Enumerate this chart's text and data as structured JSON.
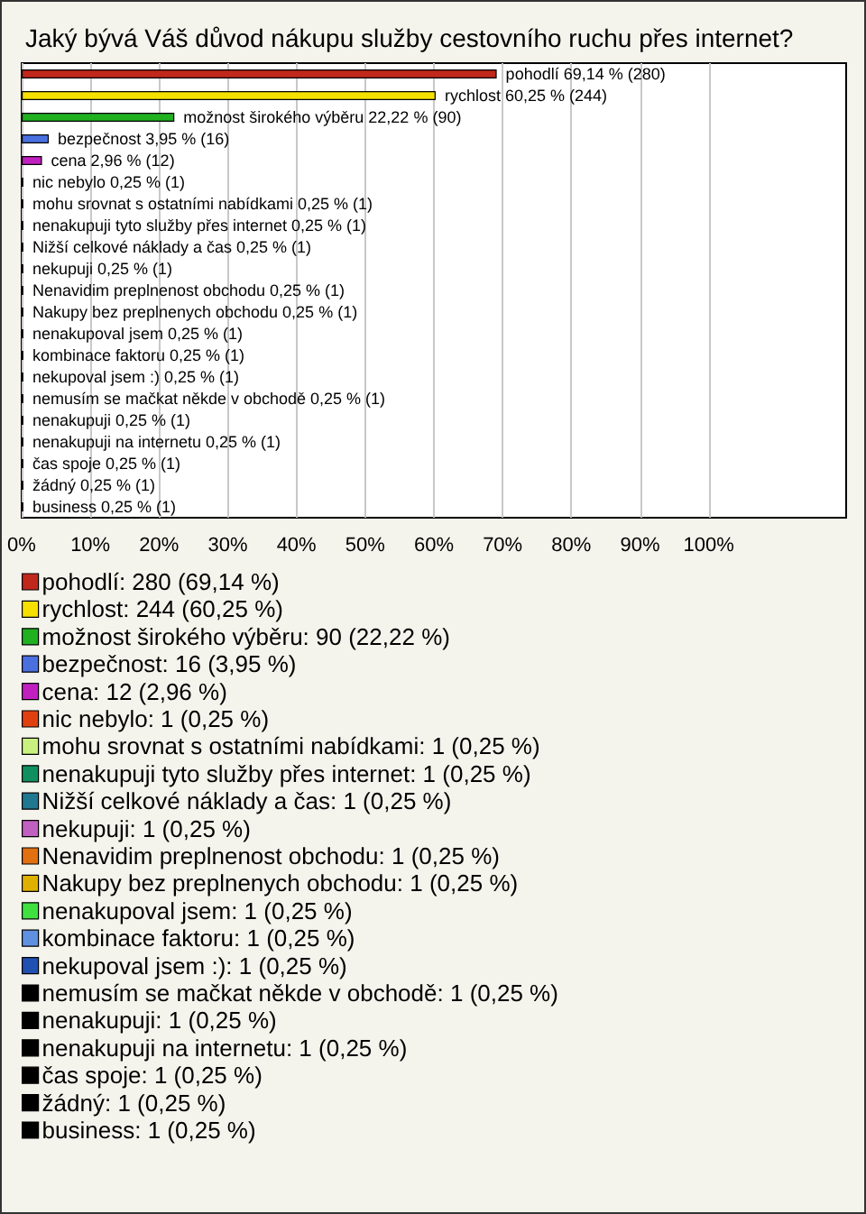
{
  "chart_data": {
    "type": "bar",
    "orientation": "horizontal",
    "stacked": true,
    "title": "Jaký bývá Váš důvod nákupu služby cestovního ruchu přes internet?",
    "categories": [
      null,
      null,
      null,
      null,
      null,
      null,
      null,
      null,
      null,
      null,
      null,
      null,
      null,
      null,
      null,
      null,
      null,
      null,
      null,
      null,
      null
    ],
    "xlim": [
      0,
      120
    ],
    "xticks": [
      {
        "value": 0,
        "label": "0%"
      },
      {
        "value": 10,
        "label": "10%"
      },
      {
        "value": 20,
        "label": "20%"
      },
      {
        "value": 30,
        "label": "30%"
      },
      {
        "value": 40,
        "label": "40%"
      },
      {
        "value": 50,
        "label": "50%"
      },
      {
        "value": 60,
        "label": "60%"
      },
      {
        "value": 70,
        "label": "70%"
      },
      {
        "value": 80,
        "label": "80%"
      },
      {
        "value": 90,
        "label": "90%"
      },
      {
        "value": 100,
        "label": "100%"
      }
    ],
    "grid": "x",
    "legend": "bottom",
    "series": [
      {
        "name": "pohodlí: 280 (69,14 %)",
        "color": "#c0281c",
        "values": [
          69.14,
          null,
          null,
          null,
          null,
          null,
          null,
          null,
          null,
          null,
          null,
          null,
          null,
          null,
          null,
          null,
          null,
          null,
          null,
          null,
          null
        ],
        "value_labels": [
          "pohodlí 69,14 % (280)",
          null,
          null,
          null,
          null,
          null,
          null,
          null,
          null,
          null,
          null,
          null,
          null,
          null,
          null,
          null,
          null,
          null,
          null,
          null,
          null
        ]
      },
      {
        "name": "rychlost: 244 (60,25 %)",
        "color": "#f5e000",
        "values": [
          null,
          60.25,
          null,
          null,
          null,
          null,
          null,
          null,
          null,
          null,
          null,
          null,
          null,
          null,
          null,
          null,
          null,
          null,
          null,
          null,
          null
        ],
        "value_labels": [
          null,
          "rychlost 60,25 % (244)",
          null,
          null,
          null,
          null,
          null,
          null,
          null,
          null,
          null,
          null,
          null,
          null,
          null,
          null,
          null,
          null,
          null,
          null,
          null
        ]
      },
      {
        "name": "možnost širokého výběru: 90 (22,22 %)",
        "color": "#20b020",
        "values": [
          null,
          null,
          22.22,
          null,
          null,
          null,
          null,
          null,
          null,
          null,
          null,
          null,
          null,
          null,
          null,
          null,
          null,
          null,
          null,
          null,
          null
        ],
        "value_labels": [
          null,
          null,
          "možnost širokého výběru 22,22 % (90)",
          null,
          null,
          null,
          null,
          null,
          null,
          null,
          null,
          null,
          null,
          null,
          null,
          null,
          null,
          null,
          null,
          null,
          null
        ]
      },
      {
        "name": "bezpečnost: 16 (3,95 %)",
        "color": "#4a70e0",
        "values": [
          null,
          null,
          null,
          3.95,
          null,
          null,
          null,
          null,
          null,
          null,
          null,
          null,
          null,
          null,
          null,
          null,
          null,
          null,
          null,
          null,
          null
        ],
        "value_labels": [
          null,
          null,
          null,
          "bezpečnost 3,95 % (16)",
          null,
          null,
          null,
          null,
          null,
          null,
          null,
          null,
          null,
          null,
          null,
          null,
          null,
          null,
          null,
          null,
          null
        ]
      },
      {
        "name": "cena: 12 (2,96 %)",
        "color": "#c020c0",
        "values": [
          null,
          null,
          null,
          null,
          2.96,
          null,
          null,
          null,
          null,
          null,
          null,
          null,
          null,
          null,
          null,
          null,
          null,
          null,
          null,
          null,
          null
        ],
        "value_labels": [
          null,
          null,
          null,
          null,
          "cena 2,96 % (12)",
          null,
          null,
          null,
          null,
          null,
          null,
          null,
          null,
          null,
          null,
          null,
          null,
          null,
          null,
          null,
          null
        ]
      },
      {
        "name": "nic nebylo: 1 (0,25 %)",
        "color": "#e04010",
        "values": [
          null,
          null,
          null,
          null,
          null,
          0.25,
          null,
          null,
          null,
          null,
          null,
          null,
          null,
          null,
          null,
          null,
          null,
          null,
          null,
          null,
          null
        ],
        "value_labels": [
          null,
          null,
          null,
          null,
          null,
          "nic nebylo 0,25 % (1)",
          null,
          null,
          null,
          null,
          null,
          null,
          null,
          null,
          null,
          null,
          null,
          null,
          null,
          null,
          null
        ]
      },
      {
        "name": "mohu srovnat s ostatními nabídkami: 1 (0,25 %)",
        "color": "#c8f080",
        "values": [
          null,
          null,
          null,
          null,
          null,
          null,
          0.25,
          null,
          null,
          null,
          null,
          null,
          null,
          null,
          null,
          null,
          null,
          null,
          null,
          null,
          null
        ],
        "value_labels": [
          null,
          null,
          null,
          null,
          null,
          null,
          "mohu srovnat s ostatními nabídkami 0,25 % (1)",
          null,
          null,
          null,
          null,
          null,
          null,
          null,
          null,
          null,
          null,
          null,
          null,
          null,
          null
        ]
      },
      {
        "name": "nenakupuji tyto služby přes internet: 1 (0,25 %)",
        "color": "#109060",
        "values": [
          null,
          null,
          null,
          null,
          null,
          null,
          null,
          0.25,
          null,
          null,
          null,
          null,
          null,
          null,
          null,
          null,
          null,
          null,
          null,
          null,
          null
        ],
        "value_labels": [
          null,
          null,
          null,
          null,
          null,
          null,
          null,
          "nenakupuji tyto služby přes internet 0,25 % (1)",
          null,
          null,
          null,
          null,
          null,
          null,
          null,
          null,
          null,
          null,
          null,
          null,
          null
        ]
      },
      {
        "name": "Nižší celkové náklady a čas: 1 (0,25 %)",
        "color": "#207890",
        "values": [
          null,
          null,
          null,
          null,
          null,
          null,
          null,
          null,
          0.25,
          null,
          null,
          null,
          null,
          null,
          null,
          null,
          null,
          null,
          null,
          null,
          null
        ],
        "value_labels": [
          null,
          null,
          null,
          null,
          null,
          null,
          null,
          null,
          "Nižší celkové náklady a čas 0,25 % (1)",
          null,
          null,
          null,
          null,
          null,
          null,
          null,
          null,
          null,
          null,
          null,
          null
        ]
      },
      {
        "name": "nekupuji: 1 (0,25 %)",
        "color": "#c060c0",
        "values": [
          null,
          null,
          null,
          null,
          null,
          null,
          null,
          null,
          null,
          0.25,
          null,
          null,
          null,
          null,
          null,
          null,
          null,
          null,
          null,
          null,
          null
        ],
        "value_labels": [
          null,
          null,
          null,
          null,
          null,
          null,
          null,
          null,
          null,
          "nekupuji 0,25 % (1)",
          null,
          null,
          null,
          null,
          null,
          null,
          null,
          null,
          null,
          null,
          null
        ]
      },
      {
        "name": "Nenavidim preplnenost obchodu: 1 (0,25 %)",
        "color": "#e07010",
        "values": [
          null,
          null,
          null,
          null,
          null,
          null,
          null,
          null,
          null,
          null,
          0.25,
          null,
          null,
          null,
          null,
          null,
          null,
          null,
          null,
          null,
          null
        ],
        "value_labels": [
          null,
          null,
          null,
          null,
          null,
          null,
          null,
          null,
          null,
          null,
          "Nenavidim preplnenost obchodu 0,25 % (1)",
          null,
          null,
          null,
          null,
          null,
          null,
          null,
          null,
          null,
          null
        ]
      },
      {
        "name": "Nakupy bez preplnenych obchodu: 1 (0,25 %)",
        "color": "#e0b000",
        "values": [
          null,
          null,
          null,
          null,
          null,
          null,
          null,
          null,
          null,
          null,
          null,
          0.25,
          null,
          null,
          null,
          null,
          null,
          null,
          null,
          null,
          null
        ],
        "value_labels": [
          null,
          null,
          null,
          null,
          null,
          null,
          null,
          null,
          null,
          null,
          null,
          "Nakupy bez preplnenych obchodu 0,25 % (1)",
          null,
          null,
          null,
          null,
          null,
          null,
          null,
          null,
          null
        ]
      },
      {
        "name": "nenakupoval jsem: 1 (0,25 %)",
        "color": "#40e040",
        "values": [
          null,
          null,
          null,
          null,
          null,
          null,
          null,
          null,
          null,
          null,
          null,
          null,
          0.25,
          null,
          null,
          null,
          null,
          null,
          null,
          null,
          null
        ],
        "value_labels": [
          null,
          null,
          null,
          null,
          null,
          null,
          null,
          null,
          null,
          null,
          null,
          null,
          "nenakupoval jsem 0,25 % (1)",
          null,
          null,
          null,
          null,
          null,
          null,
          null,
          null
        ]
      },
      {
        "name": "kombinace faktoru: 1 (0,25 %)",
        "color": "#6090e0",
        "values": [
          null,
          null,
          null,
          null,
          null,
          null,
          null,
          null,
          null,
          null,
          null,
          null,
          null,
          0.25,
          null,
          null,
          null,
          null,
          null,
          null,
          null
        ],
        "value_labels": [
          null,
          null,
          null,
          null,
          null,
          null,
          null,
          null,
          null,
          null,
          null,
          null,
          null,
          "kombinace faktoru 0,25 % (1)",
          null,
          null,
          null,
          null,
          null,
          null,
          null
        ]
      },
      {
        "name": "nekupoval jsem :): 1 (0,25 %)",
        "color": "#2050b0",
        "values": [
          null,
          null,
          null,
          null,
          null,
          null,
          null,
          null,
          null,
          null,
          null,
          null,
          null,
          null,
          0.25,
          null,
          null,
          null,
          null,
          null,
          null
        ],
        "value_labels": [
          null,
          null,
          null,
          null,
          null,
          null,
          null,
          null,
          null,
          null,
          null,
          null,
          null,
          null,
          "nekupoval jsem :) 0,25 % (1)",
          null,
          null,
          null,
          null,
          null,
          null
        ]
      },
      {
        "name": "nemusím se mačkat někde v obchodě: 1 (0,25 %)",
        "color": "#000000",
        "values": [
          null,
          null,
          null,
          null,
          null,
          null,
          null,
          null,
          null,
          null,
          null,
          null,
          null,
          null,
          null,
          0.25,
          null,
          null,
          null,
          null,
          null
        ],
        "value_labels": [
          null,
          null,
          null,
          null,
          null,
          null,
          null,
          null,
          null,
          null,
          null,
          null,
          null,
          null,
          null,
          "nemusím se mačkat někde v obchodě 0,25 % (1)",
          null,
          null,
          null,
          null,
          null
        ]
      },
      {
        "name": "nenakupuji: 1 (0,25 %)",
        "color": "#000000",
        "values": [
          null,
          null,
          null,
          null,
          null,
          null,
          null,
          null,
          null,
          null,
          null,
          null,
          null,
          null,
          null,
          null,
          0.25,
          null,
          null,
          null,
          null
        ],
        "value_labels": [
          null,
          null,
          null,
          null,
          null,
          null,
          null,
          null,
          null,
          null,
          null,
          null,
          null,
          null,
          null,
          null,
          "nenakupuji 0,25 % (1)",
          null,
          null,
          null,
          null
        ]
      },
      {
        "name": "nenakupuji na internetu: 1 (0,25 %)",
        "color": "#000000",
        "values": [
          null,
          null,
          null,
          null,
          null,
          null,
          null,
          null,
          null,
          null,
          null,
          null,
          null,
          null,
          null,
          null,
          null,
          0.25,
          null,
          null,
          null
        ],
        "value_labels": [
          null,
          null,
          null,
          null,
          null,
          null,
          null,
          null,
          null,
          null,
          null,
          null,
          null,
          null,
          null,
          null,
          null,
          "nenakupuji na internetu 0,25 % (1)",
          null,
          null,
          null
        ]
      },
      {
        "name": "čas spoje: 1 (0,25 %)",
        "color": "#000000",
        "values": [
          null,
          null,
          null,
          null,
          null,
          null,
          null,
          null,
          null,
          null,
          null,
          null,
          null,
          null,
          null,
          null,
          null,
          null,
          0.25,
          null,
          null
        ],
        "value_labels": [
          null,
          null,
          null,
          null,
          null,
          null,
          null,
          null,
          null,
          null,
          null,
          null,
          null,
          null,
          null,
          null,
          null,
          null,
          "čas spoje 0,25 % (1)",
          null,
          null
        ]
      },
      {
        "name": "žádný: 1 (0,25 %)",
        "color": "#000000",
        "values": [
          null,
          null,
          null,
          null,
          null,
          null,
          null,
          null,
          null,
          null,
          null,
          null,
          null,
          null,
          null,
          null,
          null,
          null,
          null,
          0.25,
          null
        ],
        "value_labels": [
          null,
          null,
          null,
          null,
          null,
          null,
          null,
          null,
          null,
          null,
          null,
          null,
          null,
          null,
          null,
          null,
          null,
          null,
          null,
          "žádný 0,25 % (1)",
          null
        ]
      },
      {
        "name": "business: 1 (0,25 %)",
        "color": "#000000",
        "values": [
          null,
          null,
          null,
          null,
          null,
          null,
          null,
          null,
          null,
          null,
          null,
          null,
          null,
          null,
          null,
          null,
          null,
          null,
          null,
          null,
          0.25
        ],
        "value_labels": [
          null,
          null,
          null,
          null,
          null,
          null,
          null,
          null,
          null,
          null,
          null,
          null,
          null,
          null,
          null,
          null,
          null,
          null,
          null,
          null,
          "business 0,25 % (1)"
        ]
      }
    ]
  }
}
